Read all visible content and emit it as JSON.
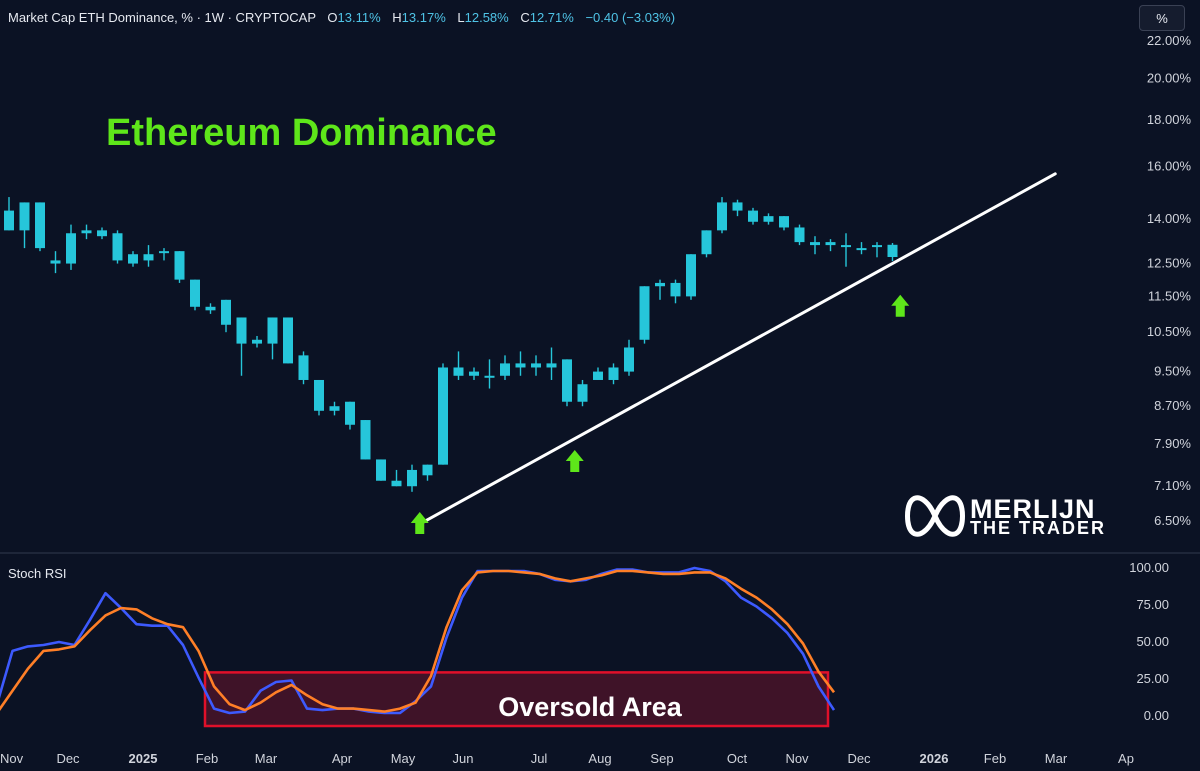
{
  "header": {
    "symbol": "Market Cap ETH Dominance, % · 1W · CRYPTOCAP",
    "o_label": "O",
    "o_value": "13.11%",
    "h_label": "H",
    "h_value": "13.17%",
    "l_label": "L",
    "l_value": "12.58%",
    "c_label": "C",
    "c_value": "12.71%",
    "change": "−0.40 (−3.03%)"
  },
  "scale_button": "%",
  "logo": {
    "line1": "MERLIJN",
    "line2": "THE TRADER",
    "icon": "infinity-m-icon"
  },
  "chart_data": [
    {
      "type": "candlestick",
      "title": "Ethereum Dominance",
      "price_axis_ticks": [
        "22.00%",
        "20.00%",
        "18.00%",
        "16.00%",
        "14.00%",
        "12.50%",
        "11.50%",
        "10.50%",
        "9.50%",
        "8.70%",
        "7.90%",
        "7.10%",
        "6.50%"
      ],
      "price_scale": "log",
      "interval": "1W",
      "candles": [
        {
          "o": 14.3,
          "h": 14.8,
          "l": 13.6,
          "c": 13.6
        },
        {
          "o": 13.6,
          "h": 14.6,
          "l": 13.0,
          "c": 14.6
        },
        {
          "o": 14.6,
          "h": 14.6,
          "l": 12.9,
          "c": 13.0
        },
        {
          "o": 12.6,
          "h": 12.9,
          "l": 12.2,
          "c": 12.5
        },
        {
          "o": 12.5,
          "h": 13.8,
          "l": 12.3,
          "c": 13.5
        },
        {
          "o": 13.5,
          "h": 13.8,
          "l": 13.3,
          "c": 13.6
        },
        {
          "o": 13.6,
          "h": 13.7,
          "l": 13.3,
          "c": 13.4
        },
        {
          "o": 13.5,
          "h": 13.6,
          "l": 12.5,
          "c": 12.6
        },
        {
          "o": 12.5,
          "h": 12.9,
          "l": 12.4,
          "c": 12.8
        },
        {
          "o": 12.6,
          "h": 13.1,
          "l": 12.4,
          "c": 12.8
        },
        {
          "o": 12.9,
          "h": 13.0,
          "l": 12.6,
          "c": 12.9
        },
        {
          "o": 12.9,
          "h": 12.9,
          "l": 11.9,
          "c": 12.0
        },
        {
          "o": 12.0,
          "h": 12.0,
          "l": 11.1,
          "c": 11.2
        },
        {
          "o": 11.2,
          "h": 11.3,
          "l": 11.0,
          "c": 11.1
        },
        {
          "o": 11.4,
          "h": 11.4,
          "l": 10.5,
          "c": 10.7
        },
        {
          "o": 10.9,
          "h": 10.9,
          "l": 9.4,
          "c": 10.2
        },
        {
          "o": 10.3,
          "h": 10.4,
          "l": 10.1,
          "c": 10.2
        },
        {
          "o": 10.9,
          "h": 10.9,
          "l": 9.8,
          "c": 10.2
        },
        {
          "o": 10.9,
          "h": 10.9,
          "l": 9.7,
          "c": 9.7
        },
        {
          "o": 9.9,
          "h": 10.0,
          "l": 9.2,
          "c": 9.3
        },
        {
          "o": 9.3,
          "h": 9.3,
          "l": 8.5,
          "c": 8.6
        },
        {
          "o": 8.6,
          "h": 8.8,
          "l": 8.5,
          "c": 8.7
        },
        {
          "o": 8.8,
          "h": 8.8,
          "l": 8.2,
          "c": 8.3
        },
        {
          "o": 8.4,
          "h": 8.4,
          "l": 7.6,
          "c": 7.6
        },
        {
          "o": 7.6,
          "h": 7.6,
          "l": 7.2,
          "c": 7.2
        },
        {
          "o": 7.2,
          "h": 7.4,
          "l": 7.1,
          "c": 7.1
        },
        {
          "o": 7.1,
          "h": 7.5,
          "l": 7.0,
          "c": 7.4
        },
        {
          "o": 7.3,
          "h": 7.5,
          "l": 7.2,
          "c": 7.5
        },
        {
          "o": 7.5,
          "h": 9.7,
          "l": 7.5,
          "c": 9.6
        },
        {
          "o": 9.6,
          "h": 10.0,
          "l": 9.3,
          "c": 9.4
        },
        {
          "o": 9.5,
          "h": 9.6,
          "l": 9.3,
          "c": 9.4
        },
        {
          "o": 9.4,
          "h": 9.8,
          "l": 9.1,
          "c": 9.4
        },
        {
          "o": 9.4,
          "h": 9.9,
          "l": 9.3,
          "c": 9.7
        },
        {
          "o": 9.7,
          "h": 10.0,
          "l": 9.4,
          "c": 9.6
        },
        {
          "o": 9.6,
          "h": 9.9,
          "l": 9.4,
          "c": 9.7
        },
        {
          "o": 9.7,
          "h": 10.1,
          "l": 9.3,
          "c": 9.6
        },
        {
          "o": 9.8,
          "h": 9.8,
          "l": 8.7,
          "c": 8.8
        },
        {
          "o": 8.8,
          "h": 9.3,
          "l": 8.7,
          "c": 9.2
        },
        {
          "o": 9.3,
          "h": 9.6,
          "l": 9.3,
          "c": 9.5
        },
        {
          "o": 9.3,
          "h": 9.7,
          "l": 9.2,
          "c": 9.6
        },
        {
          "o": 9.5,
          "h": 10.3,
          "l": 9.4,
          "c": 10.1
        },
        {
          "o": 10.3,
          "h": 11.8,
          "l": 10.2,
          "c": 11.8
        },
        {
          "o": 11.8,
          "h": 12.0,
          "l": 11.4,
          "c": 11.9
        },
        {
          "o": 11.9,
          "h": 12.0,
          "l": 11.3,
          "c": 11.5
        },
        {
          "o": 11.5,
          "h": 12.8,
          "l": 11.4,
          "c": 12.8
        },
        {
          "o": 12.8,
          "h": 13.6,
          "l": 12.7,
          "c": 13.6
        },
        {
          "o": 13.6,
          "h": 14.8,
          "l": 13.5,
          "c": 14.6
        },
        {
          "o": 14.6,
          "h": 14.7,
          "l": 14.1,
          "c": 14.3
        },
        {
          "o": 14.3,
          "h": 14.4,
          "l": 13.8,
          "c": 13.9
        },
        {
          "o": 13.9,
          "h": 14.2,
          "l": 13.8,
          "c": 14.1
        },
        {
          "o": 14.1,
          "h": 14.1,
          "l": 13.6,
          "c": 13.7
        },
        {
          "o": 13.7,
          "h": 13.8,
          "l": 13.1,
          "c": 13.2
        },
        {
          "o": 13.2,
          "h": 13.4,
          "l": 12.8,
          "c": 13.1
        },
        {
          "o": 13.2,
          "h": 13.3,
          "l": 12.9,
          "c": 13.1
        },
        {
          "o": 13.1,
          "h": 13.5,
          "l": 12.4,
          "c": 13.1
        },
        {
          "o": 13.0,
          "h": 13.2,
          "l": 12.8,
          "c": 13.0
        },
        {
          "o": 13.1,
          "h": 13.2,
          "l": 12.7,
          "c": 13.1
        },
        {
          "o": 13.11,
          "h": 13.17,
          "l": 12.58,
          "c": 12.71
        }
      ],
      "trendline": {
        "start_week": 26.5,
        "start_value": 6.45,
        "end_week": 67.5,
        "end_value": 15.7
      },
      "bounce_arrows": [
        {
          "week": 26.5,
          "value": 6.45
        },
        {
          "week": 36.5,
          "value": 7.55
        },
        {
          "week": 57.5,
          "value": 11.2
        }
      ],
      "colors": {
        "up": "#26c6da",
        "down": "#26c6da",
        "trendline": "#ffffff",
        "arrow": "#5ee61a",
        "title": "#5ee61a"
      }
    },
    {
      "type": "line",
      "title": "Stoch RSI",
      "y_ticks": [
        "100.00",
        "75.00",
        "50.00",
        "25.00",
        "0.00"
      ],
      "ylim": [
        0,
        100
      ],
      "series": [
        {
          "color": "#3d5afe",
          "values": [
            8,
            44,
            47,
            48,
            50,
            48,
            65,
            83,
            73,
            62,
            61,
            61,
            48,
            26,
            5,
            2,
            3,
            17,
            23,
            24,
            5,
            4,
            5,
            5,
            3,
            2,
            2,
            10,
            20,
            53,
            80,
            98,
            98,
            98,
            98,
            96,
            92,
            91,
            92,
            96,
            99,
            99,
            97,
            97,
            97,
            100,
            98,
            91,
            80,
            74,
            66,
            56,
            42,
            20,
            4
          ]
        },
        {
          "color": "#ff7f27",
          "values": [
            2,
            17,
            32,
            44,
            45,
            47,
            58,
            68,
            73,
            72,
            66,
            62,
            60,
            44,
            20,
            8,
            4,
            9,
            16,
            21,
            14,
            8,
            5,
            5,
            4,
            3,
            5,
            9,
            27,
            60,
            85,
            97,
            98,
            98,
            97,
            96,
            93,
            91,
            93,
            95,
            98,
            98,
            97,
            96,
            96,
            97,
            97,
            93,
            86,
            80,
            72,
            62,
            49,
            30,
            16
          ]
        }
      ]
    },
    {
      "type": "time-axis",
      "labels": [
        "Nov",
        "Dec",
        "2025",
        "Feb",
        "Mar",
        "Apr",
        "May",
        "Jun",
        "Jul",
        "Aug",
        "Sep",
        "Oct",
        "Nov",
        "Dec",
        "2026",
        "Feb",
        "Mar",
        "Ap"
      ],
      "bold_labels": [
        "2025",
        "2026"
      ]
    }
  ],
  "annotations": {
    "oversold_label": "Oversold Area",
    "oversold_range": [
      0,
      20
    ],
    "oversold_color": "#e0102a"
  }
}
